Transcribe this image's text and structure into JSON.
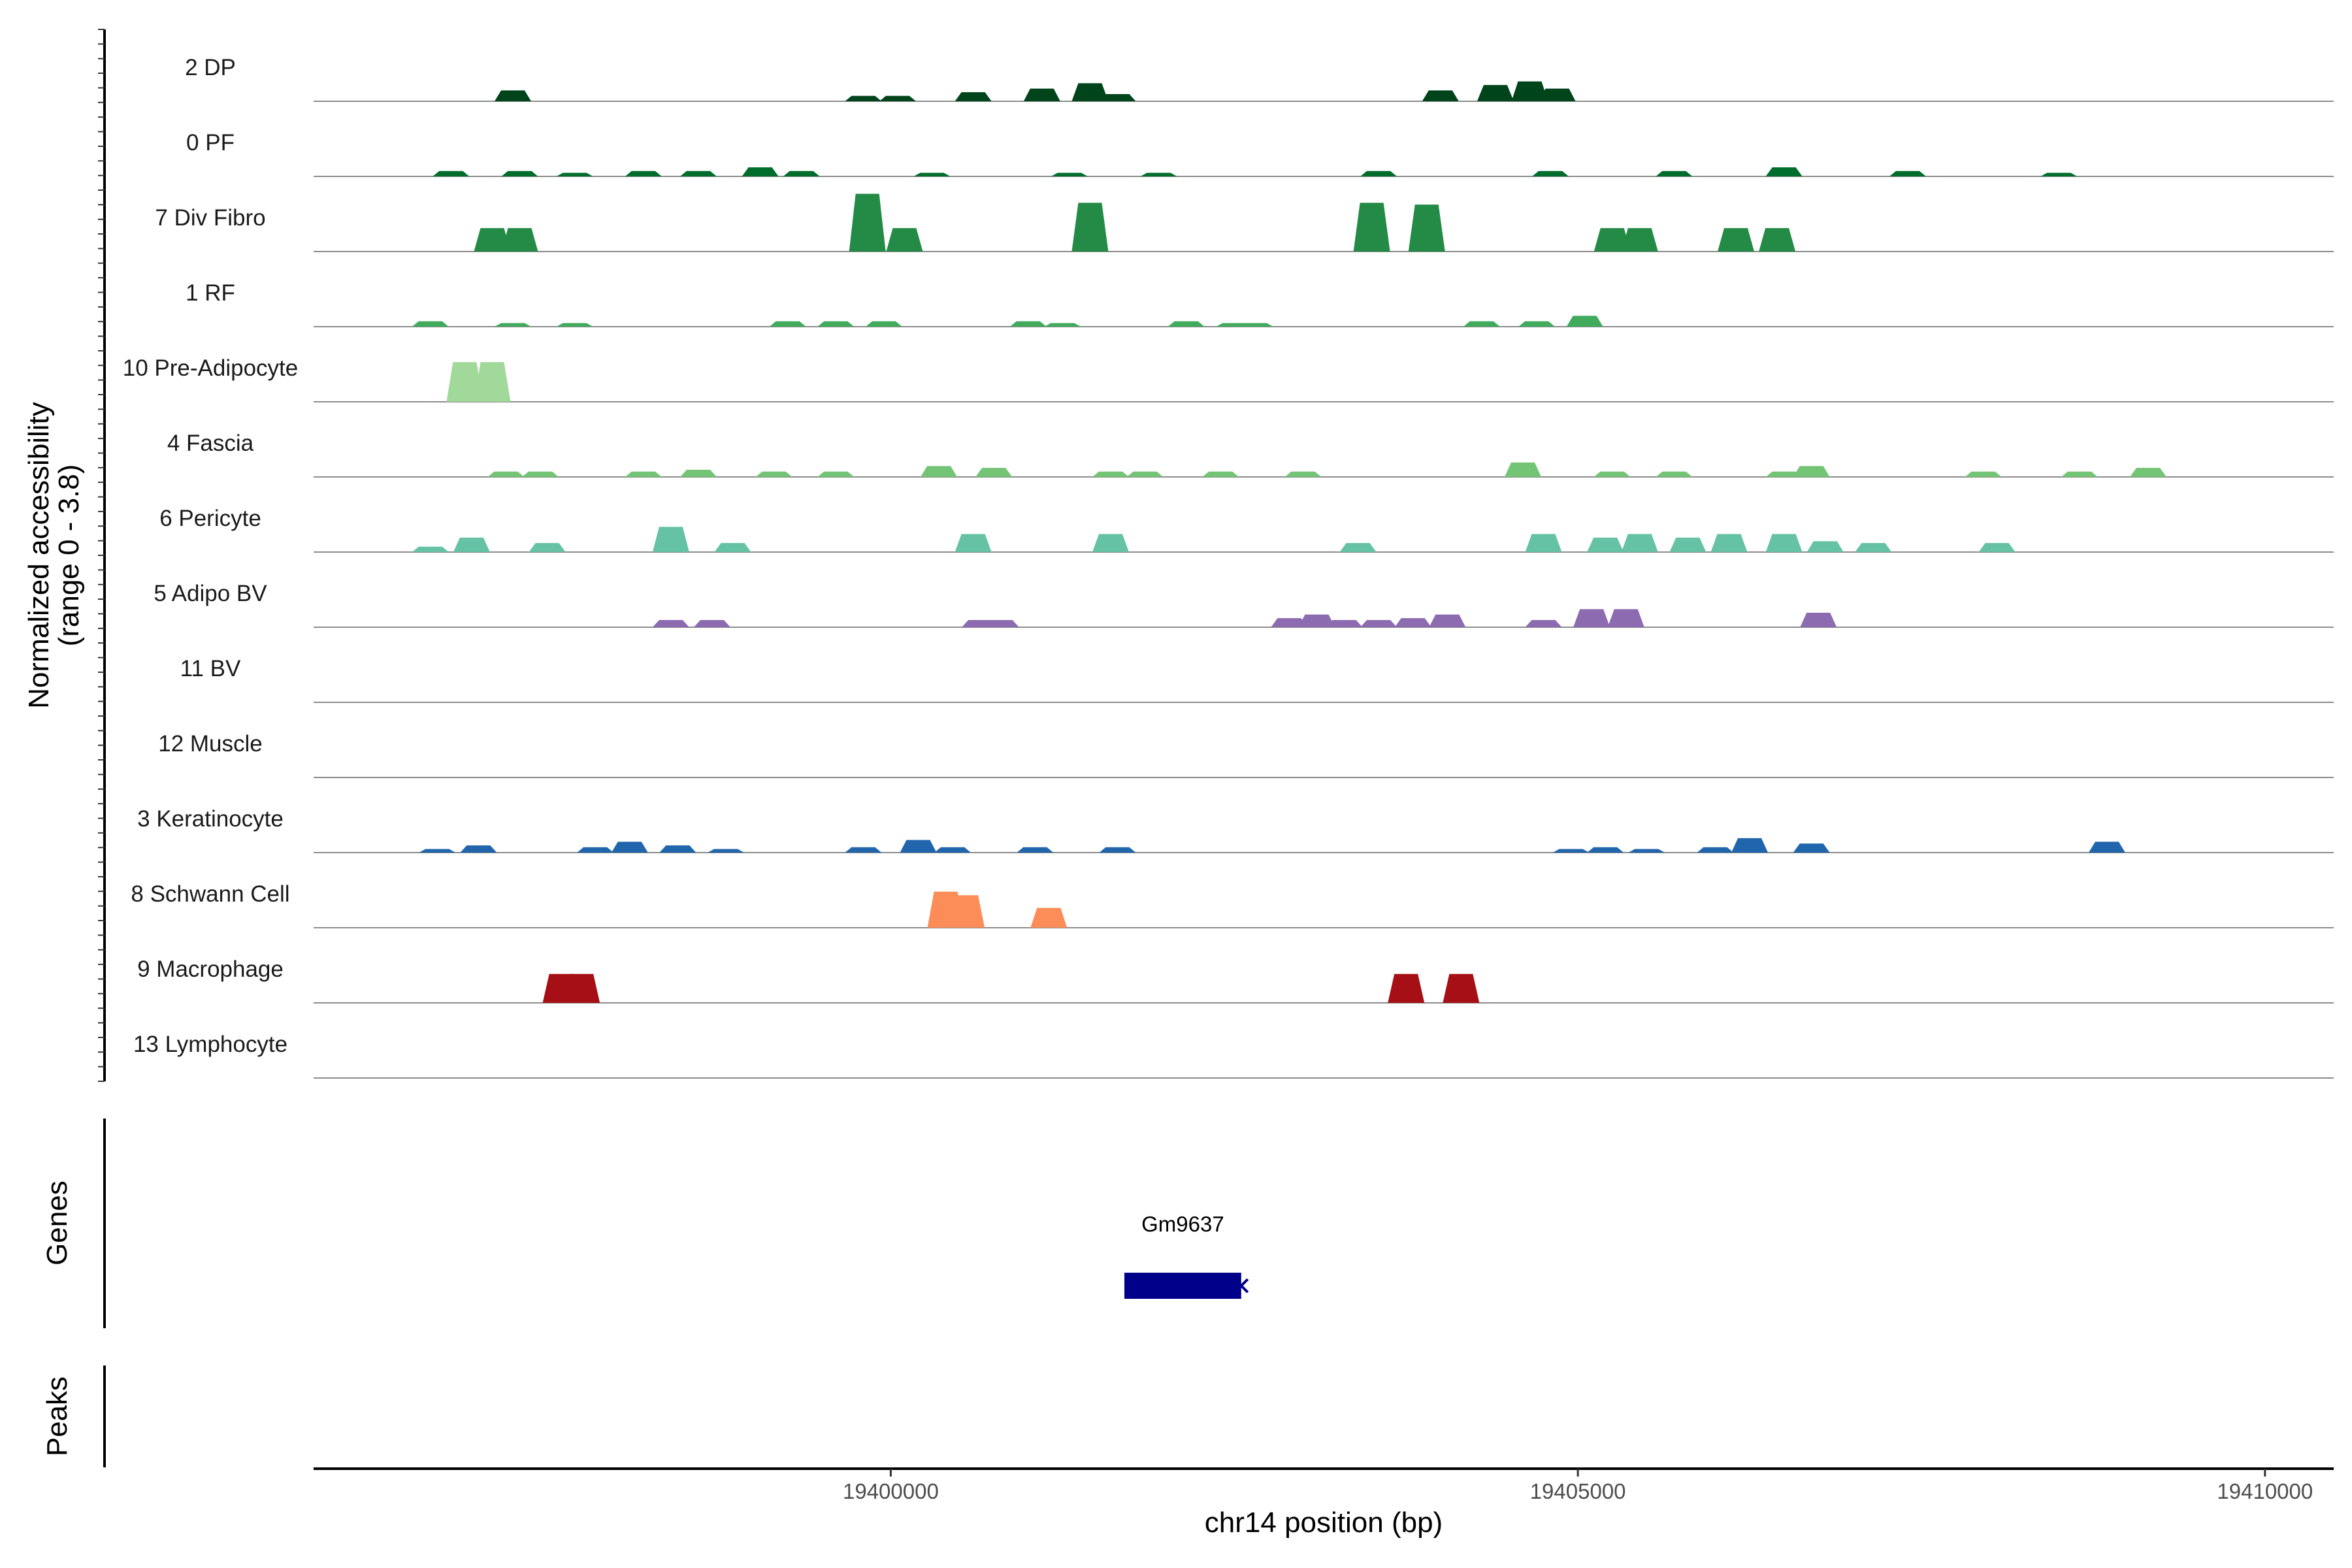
{
  "chart_data": {
    "type": "area",
    "y_axis": {
      "label_line1": "Normalized accessibility",
      "label_line2": "(range 0 - 3.8)",
      "range": [
        0,
        3.8
      ]
    },
    "x_axis": {
      "label": "chr14 position (bp)",
      "range": [
        19395800,
        19410500
      ],
      "ticks": [
        19400000,
        19405000,
        19410000
      ],
      "tick_labels": [
        "19400000",
        "19405000",
        "19410000"
      ]
    },
    "tracks": [
      {
        "name": "2 DP",
        "color": "#00441b",
        "peaks": [
          [
            19397250,
            0.6
          ],
          [
            19399800,
            0.3
          ],
          [
            19400050,
            0.3
          ],
          [
            19400600,
            0.5
          ],
          [
            19401100,
            0.7
          ],
          [
            19401450,
            1.0
          ],
          [
            19401650,
            0.4
          ],
          [
            19404000,
            0.6
          ],
          [
            19404400,
            0.9
          ],
          [
            19404650,
            1.1
          ],
          [
            19404850,
            0.7
          ]
        ]
      },
      {
        "name": "0 PF",
        "color": "#006d2c",
        "peaks": [
          [
            19396800,
            0.3
          ],
          [
            19397300,
            0.3
          ],
          [
            19397700,
            0.2
          ],
          [
            19398200,
            0.3
          ],
          [
            19398600,
            0.3
          ],
          [
            19399050,
            0.5
          ],
          [
            19399350,
            0.3
          ],
          [
            19400300,
            0.2
          ],
          [
            19401300,
            0.2
          ],
          [
            19401950,
            0.2
          ],
          [
            19403550,
            0.3
          ],
          [
            19404800,
            0.3
          ],
          [
            19405700,
            0.3
          ],
          [
            19406500,
            0.5
          ],
          [
            19407400,
            0.3
          ],
          [
            19408500,
            0.2
          ]
        ]
      },
      {
        "name": "7 Div Fibro",
        "color": "#238b45",
        "peaks": [
          [
            19397100,
            1.3
          ],
          [
            19397300,
            1.3
          ],
          [
            19399830,
            3.2
          ],
          [
            19400100,
            1.3
          ],
          [
            19401450,
            2.7
          ],
          [
            19403500,
            2.7
          ],
          [
            19403900,
            2.6
          ],
          [
            19405250,
            1.3
          ],
          [
            19405450,
            1.3
          ],
          [
            19406150,
            1.3
          ],
          [
            19406450,
            1.3
          ]
        ]
      },
      {
        "name": "1 RF",
        "color": "#41ab5d",
        "peaks": [
          [
            19396650,
            0.3
          ],
          [
            19397250,
            0.2
          ],
          [
            19397700,
            0.2
          ],
          [
            19399250,
            0.3
          ],
          [
            19399600,
            0.3
          ],
          [
            19399950,
            0.3
          ],
          [
            19401000,
            0.3
          ],
          [
            19401250,
            0.2
          ],
          [
            19402150,
            0.3
          ],
          [
            19402500,
            0.2
          ],
          [
            19402650,
            0.2
          ],
          [
            19404300,
            0.3
          ],
          [
            19404700,
            0.3
          ],
          [
            19405050,
            0.6
          ]
        ]
      },
      {
        "name": "10 Pre-Adipocyte",
        "color": "#a1d99b",
        "peaks": [
          [
            19396900,
            2.2
          ],
          [
            19397100,
            2.2
          ]
        ]
      },
      {
        "name": "4 Fascia",
        "color": "#74c476",
        "peaks": [
          [
            19397200,
            0.3
          ],
          [
            19397450,
            0.3
          ],
          [
            19398200,
            0.3
          ],
          [
            19398600,
            0.4
          ],
          [
            19399150,
            0.3
          ],
          [
            19399600,
            0.3
          ],
          [
            19400350,
            0.6
          ],
          [
            19400750,
            0.5
          ],
          [
            19401600,
            0.3
          ],
          [
            19401850,
            0.3
          ],
          [
            19402400,
            0.3
          ],
          [
            19403000,
            0.3
          ],
          [
            19404600,
            0.8
          ],
          [
            19405250,
            0.3
          ],
          [
            19405700,
            0.3
          ],
          [
            19406500,
            0.3
          ],
          [
            19406700,
            0.6
          ],
          [
            19407950,
            0.3
          ],
          [
            19408650,
            0.3
          ],
          [
            19409150,
            0.5
          ]
        ]
      },
      {
        "name": "6 Pericyte",
        "color": "#66c2a4",
        "peaks": [
          [
            19396650,
            0.3
          ],
          [
            19396950,
            0.8
          ],
          [
            19397500,
            0.5
          ],
          [
            19398400,
            1.4
          ],
          [
            19398850,
            0.5
          ],
          [
            19400600,
            1.0
          ],
          [
            19401600,
            1.0
          ],
          [
            19403400,
            0.5
          ],
          [
            19404750,
            1.0
          ],
          [
            19405200,
            0.8
          ],
          [
            19405450,
            1.0
          ],
          [
            19405800,
            0.8
          ],
          [
            19406100,
            1.0
          ],
          [
            19406500,
            1.0
          ],
          [
            19406800,
            0.6
          ],
          [
            19407150,
            0.5
          ],
          [
            19408050,
            0.5
          ]
        ]
      },
      {
        "name": "5 Adipo BV",
        "color": "#8c6bb1",
        "peaks": [
          [
            19398400,
            0.4
          ],
          [
            19398700,
            0.4
          ],
          [
            19400650,
            0.4
          ],
          [
            19400800,
            0.4
          ],
          [
            19402900,
            0.5
          ],
          [
            19403100,
            0.7
          ],
          [
            19403300,
            0.4
          ],
          [
            19403550,
            0.4
          ],
          [
            19403800,
            0.5
          ],
          [
            19404050,
            0.7
          ],
          [
            19404750,
            0.4
          ],
          [
            19405100,
            1.0
          ],
          [
            19405350,
            1.0
          ],
          [
            19406750,
            0.8
          ]
        ]
      },
      {
        "name": "11 BV",
        "color": "#807dba",
        "peaks": []
      },
      {
        "name": "12 Muscle",
        "color": "#9e9ac8",
        "peaks": []
      },
      {
        "name": "3 Keratinocyte",
        "color": "#2166ac",
        "peaks": [
          [
            19396700,
            0.2
          ],
          [
            19397000,
            0.4
          ],
          [
            19397850,
            0.3
          ],
          [
            19398100,
            0.6
          ],
          [
            19398450,
            0.4
          ],
          [
            19398800,
            0.2
          ],
          [
            19399800,
            0.3
          ],
          [
            19400200,
            0.7
          ],
          [
            19400450,
            0.3
          ],
          [
            19401050,
            0.3
          ],
          [
            19401650,
            0.3
          ],
          [
            19404950,
            0.2
          ],
          [
            19405200,
            0.3
          ],
          [
            19405500,
            0.2
          ],
          [
            19406000,
            0.3
          ],
          [
            19406250,
            0.8
          ],
          [
            19406700,
            0.5
          ],
          [
            19408850,
            0.6
          ]
        ]
      },
      {
        "name": "8 Schwann Cell",
        "color": "#fc8d59",
        "peaks": [
          [
            19400400,
            2.0
          ],
          [
            19400550,
            1.8
          ],
          [
            19401150,
            1.1
          ]
        ]
      },
      {
        "name": "9 Macrophage",
        "color": "#a50f15",
        "peaks": [
          [
            19397600,
            1.6
          ],
          [
            19397750,
            1.6
          ],
          [
            19403750,
            1.6
          ],
          [
            19404150,
            1.6
          ]
        ]
      },
      {
        "name": "13 Lymphocyte",
        "color": "#4a1486",
        "peaks": []
      }
    ],
    "genes_panel": {
      "label": "Genes",
      "genes": [
        {
          "name": "Gm9637",
          "start": 19401700,
          "end": 19402550,
          "strand": "-",
          "color": "#00008b"
        }
      ]
    },
    "peaks_panel": {
      "label": "Peaks"
    },
    "grid": false,
    "legend": "none"
  }
}
